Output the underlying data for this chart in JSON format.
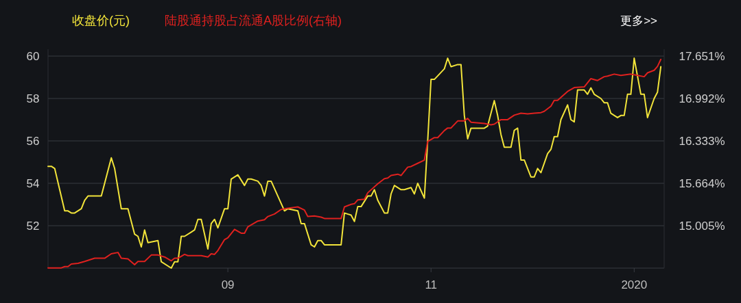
{
  "chart_data": {
    "type": "line",
    "legend": "top left",
    "grid": "y",
    "xlim": [
      "2019-07-09",
      "2020-01-10"
    ],
    "xticks": [
      {
        "value": "2019-09-01",
        "label": "09"
      },
      {
        "value": "2019-11-01",
        "label": "11"
      },
      {
        "value": "2020-01-01",
        "label": "2020"
      }
    ],
    "ylim": [
      50,
      60
    ],
    "yticks": [
      {
        "value": 50,
        "label": null
      },
      52,
      54,
      56,
      58,
      60
    ],
    "y2lim": [
      14.346,
      17.651
    ],
    "y2ticks": [
      {
        "value": 15.005,
        "label": "15.005%"
      },
      {
        "value": 15.664,
        "label": "15.664%"
      },
      {
        "value": 16.333,
        "label": "16.333%"
      },
      {
        "value": 16.992,
        "label": "16.992%"
      },
      {
        "value": 17.651,
        "label": "17.651%"
      }
    ],
    "annotations": [
      "更多>>"
    ],
    "series": [
      {
        "name": "收盘价(元)",
        "color": "#f2e43a",
        "x": [
          "2019-07-09",
          "2019-07-10",
          "2019-07-11",
          "2019-07-14",
          "2019-07-15",
          "2019-07-16",
          "2019-07-17",
          "2019-07-19",
          "2019-07-20",
          "2019-07-21",
          "2019-07-22",
          "2019-07-25",
          "2019-07-26",
          "2019-07-28",
          "2019-07-29",
          "2019-07-31",
          "2019-08-02",
          "2019-08-04",
          "2019-08-05",
          "2019-08-06",
          "2019-08-07",
          "2019-08-08",
          "2019-08-11",
          "2019-08-12",
          "2019-08-15",
          "2019-08-16",
          "2019-08-17",
          "2019-08-18",
          "2019-08-19",
          "2019-08-21",
          "2019-08-22",
          "2019-08-23",
          "2019-08-24",
          "2019-08-26",
          "2019-08-27",
          "2019-08-28",
          "2019-08-29",
          "2019-08-31",
          "2019-09-01",
          "2019-09-02",
          "2019-09-04",
          "2019-09-06",
          "2019-09-07",
          "2019-09-08",
          "2019-09-10",
          "2019-09-11",
          "2019-09-12",
          "2019-09-13",
          "2019-09-14",
          "2019-09-16",
          "2019-09-18",
          "2019-09-19",
          "2019-09-22",
          "2019-09-23",
          "2019-09-24",
          "2019-09-26",
          "2019-09-27",
          "2019-09-28",
          "2019-09-29",
          "2019-09-30",
          "2019-10-05",
          "2019-10-06",
          "2019-10-08",
          "2019-10-09",
          "2019-10-10",
          "2019-10-11",
          "2019-10-13",
          "2019-10-14",
          "2019-10-15",
          "2019-10-16",
          "2019-10-18",
          "2019-10-19",
          "2019-10-20",
          "2019-10-21",
          "2019-10-23",
          "2019-10-24",
          "2019-10-26",
          "2019-10-27",
          "2019-10-28",
          "2019-10-30",
          "2019-10-31",
          "2019-11-01",
          "2019-11-02",
          "2019-11-05",
          "2019-11-06",
          "2019-11-07",
          "2019-11-09",
          "2019-11-10",
          "2019-11-11",
          "2019-11-12",
          "2019-11-13",
          "2019-11-17",
          "2019-11-18",
          "2019-11-20",
          "2019-11-21",
          "2019-11-22",
          "2019-11-23",
          "2019-11-25",
          "2019-11-26",
          "2019-11-27",
          "2019-11-28",
          "2019-11-29",
          "2019-12-01",
          "2019-12-02",
          "2019-12-03",
          "2019-12-04",
          "2019-12-06",
          "2019-12-07",
          "2019-12-08",
          "2019-12-09",
          "2019-12-10",
          "2019-12-12",
          "2019-12-13",
          "2019-12-14",
          "2019-12-15",
          "2019-12-17",
          "2019-12-18",
          "2019-12-19",
          "2019-12-20",
          "2019-12-22",
          "2019-12-23",
          "2019-12-24",
          "2019-12-25",
          "2019-12-27",
          "2019-12-28",
          "2019-12-29",
          "2019-12-30",
          "2019-12-31",
          "2020-01-01",
          "2020-01-03",
          "2020-01-04",
          "2020-01-05",
          "2020-01-07",
          "2020-01-08",
          "2020-01-09"
        ],
        "values": [
          54.8,
          54.8,
          54.7,
          52.7,
          52.7,
          52.6,
          52.6,
          52.8,
          53.2,
          53.4,
          53.4,
          53.4,
          54.0,
          55.2,
          54.7,
          52.8,
          52.8,
          51.6,
          51.5,
          51.0,
          51.8,
          51.2,
          51.3,
          50.3,
          50.0,
          50.3,
          50.3,
          51.5,
          51.5,
          51.7,
          51.8,
          52.3,
          52.3,
          50.9,
          52.1,
          52.3,
          51.9,
          52.8,
          52.8,
          54.2,
          54.4,
          53.9,
          54.2,
          54.2,
          54.1,
          53.9,
          53.4,
          54.1,
          54.1,
          53.4,
          52.7,
          52.8,
          52.7,
          52.1,
          52.1,
          51.1,
          51.0,
          51.3,
          51.3,
          51.1,
          51.1,
          52.6,
          52.5,
          52.2,
          52.9,
          52.9,
          53.4,
          53.4,
          53.7,
          53.2,
          52.6,
          52.6,
          53.5,
          53.9,
          53.7,
          53.7,
          53.8,
          53.5,
          54.0,
          53.3,
          56.0,
          58.9,
          58.9,
          59.4,
          59.9,
          59.5,
          59.6,
          59.6,
          57.2,
          56.1,
          56.6,
          56.6,
          56.7,
          57.9,
          57.2,
          56.3,
          55.7,
          55.7,
          56.5,
          56.6,
          55.1,
          55.1,
          54.3,
          54.3,
          54.7,
          54.5,
          55.4,
          55.6,
          56.2,
          56.2,
          57.0,
          57.7,
          57.0,
          56.9,
          58.4,
          58.4,
          58.2,
          58.5,
          58.2,
          58.0,
          57.8,
          57.8,
          57.3,
          57.1,
          57.2,
          57.2,
          58.2,
          58.2,
          59.9,
          58.2,
          58.2,
          57.1,
          58.0,
          58.3,
          59.5
        ]
      },
      {
        "name": "陆股通持股占流通A股比例(右轴)",
        "color": "#e0211f",
        "axis": "y2",
        "x": [
          "2019-07-09",
          "2019-07-13",
          "2019-07-14",
          "2019-07-15",
          "2019-07-16",
          "2019-07-18",
          "2019-07-20",
          "2019-07-23",
          "2019-07-26",
          "2019-07-28",
          "2019-07-30",
          "2019-07-31",
          "2019-08-02",
          "2019-08-04",
          "2019-08-05",
          "2019-08-07",
          "2019-08-09",
          "2019-08-11",
          "2019-08-13",
          "2019-08-15",
          "2019-08-16",
          "2019-08-17",
          "2019-08-19",
          "2019-08-20",
          "2019-08-24",
          "2019-08-26",
          "2019-08-27",
          "2019-08-28",
          "2019-08-29",
          "2019-08-31",
          "2019-09-01",
          "2019-09-03",
          "2019-09-05",
          "2019-09-06",
          "2019-09-07",
          "2019-09-10",
          "2019-09-12",
          "2019-09-13",
          "2019-09-15",
          "2019-09-17",
          "2019-09-19",
          "2019-09-22",
          "2019-09-24",
          "2019-09-25",
          "2019-09-27",
          "2019-09-29",
          "2019-09-30",
          "2019-10-05",
          "2019-10-06",
          "2019-10-08",
          "2019-10-09",
          "2019-10-10",
          "2019-10-12",
          "2019-10-13",
          "2019-10-16",
          "2019-10-18",
          "2019-10-19",
          "2019-10-20",
          "2019-10-22",
          "2019-10-23",
          "2019-10-25",
          "2019-10-26",
          "2019-10-28",
          "2019-10-30",
          "2019-10-31",
          "2019-11-02",
          "2019-11-03",
          "2019-11-05",
          "2019-11-06",
          "2019-11-07",
          "2019-11-09",
          "2019-11-11",
          "2019-11-12",
          "2019-11-13",
          "2019-11-17",
          "2019-11-19",
          "2019-11-20",
          "2019-11-22",
          "2019-11-24",
          "2019-11-26",
          "2019-11-28",
          "2019-11-30",
          "2019-12-02",
          "2019-12-04",
          "2019-12-05",
          "2019-12-07",
          "2019-12-08",
          "2019-12-09",
          "2019-12-12",
          "2019-12-14",
          "2019-12-17",
          "2019-12-19",
          "2019-12-21",
          "2019-12-23",
          "2019-12-24",
          "2019-12-26",
          "2019-12-28",
          "2019-12-31",
          "2020-01-02",
          "2020-01-04",
          "2020-01-05",
          "2020-01-07",
          "2020-01-08",
          "2020-01-09"
        ],
        "values": [
          14.35,
          14.35,
          14.37,
          14.37,
          14.41,
          14.42,
          14.45,
          14.5,
          14.5,
          14.57,
          14.59,
          14.5,
          14.49,
          14.4,
          14.45,
          14.45,
          14.55,
          14.55,
          14.52,
          14.46,
          14.5,
          14.5,
          14.56,
          14.54,
          14.54,
          14.52,
          14.57,
          14.56,
          14.62,
          14.79,
          14.82,
          14.95,
          14.89,
          14.89,
          14.99,
          15.08,
          15.1,
          15.15,
          15.19,
          15.26,
          15.28,
          15.3,
          15.25,
          15.15,
          15.16,
          15.14,
          15.12,
          15.12,
          15.3,
          15.34,
          15.35,
          15.41,
          15.42,
          15.52,
          15.66,
          15.74,
          15.75,
          15.79,
          15.81,
          15.79,
          15.92,
          15.93,
          15.98,
          16.03,
          16.32,
          16.38,
          16.38,
          16.49,
          16.53,
          16.53,
          16.64,
          16.64,
          16.68,
          16.62,
          16.6,
          16.58,
          16.59,
          16.66,
          16.66,
          16.73,
          16.76,
          16.75,
          16.76,
          16.77,
          16.79,
          16.87,
          16.96,
          16.96,
          17.1,
          17.16,
          17.17,
          17.3,
          17.27,
          17.33,
          17.34,
          17.37,
          17.35,
          17.37,
          17.35,
          17.33,
          17.39,
          17.43,
          17.49,
          17.6
        ]
      }
    ]
  }
}
